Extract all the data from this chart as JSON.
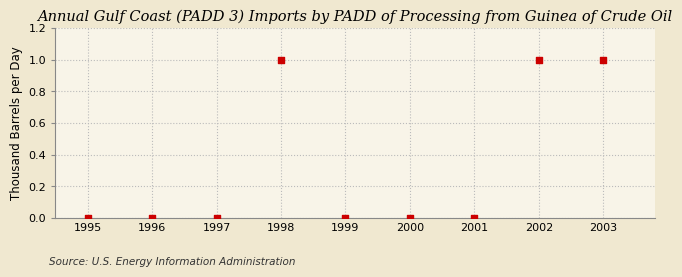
{
  "title": "Annual Gulf Coast (PADD 3) Imports by PADD of Processing from Guinea of Crude Oil",
  "ylabel": "Thousand Barrels per Day",
  "source": "Source: U.S. Energy Information Administration",
  "x_data": [
    1995,
    1996,
    1997,
    1998,
    1999,
    2000,
    2001,
    2002,
    2003
  ],
  "y_data": [
    0.0,
    0.0,
    0.0,
    1.0,
    0.0,
    0.0,
    0.0,
    1.0,
    1.0
  ],
  "xlim": [
    1994.5,
    2003.8
  ],
  "ylim": [
    0.0,
    1.2
  ],
  "yticks": [
    0.0,
    0.2,
    0.4,
    0.6,
    0.8,
    1.0,
    1.2
  ],
  "xticks": [
    1995,
    1996,
    1997,
    1998,
    1999,
    2000,
    2001,
    2002,
    2003
  ],
  "marker_color": "#CC0000",
  "marker": "s",
  "marker_size": 4,
  "bg_outer": "#F0E8D0",
  "bg_plot": "#F8F4E8",
  "grid_color": "#BBBBBB",
  "spine_color": "#888888",
  "title_fontsize": 10.5,
  "label_fontsize": 8.5,
  "tick_fontsize": 8,
  "source_fontsize": 7.5
}
